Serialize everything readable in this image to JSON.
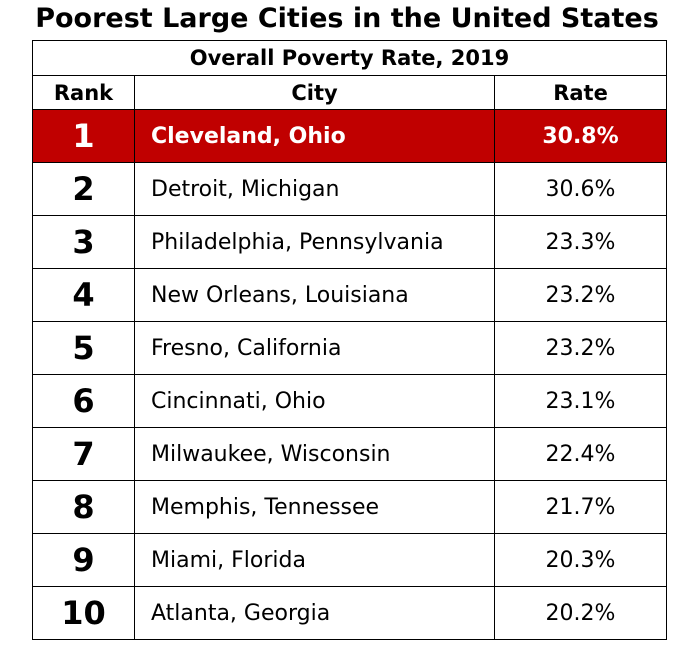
{
  "chart_data": {
    "type": "table",
    "title": "Poorest Large Cities in the United States",
    "subtitle": "Overall Poverty Rate, 2019",
    "columns": [
      "Rank",
      "City",
      "Rate"
    ],
    "highlight_color": "#c00000",
    "rows": [
      {
        "rank": "1",
        "city": "Cleveland, Ohio",
        "rate": "30.8%",
        "value": 30.8
      },
      {
        "rank": "2",
        "city": "Detroit, Michigan",
        "rate": "30.6%",
        "value": 30.6
      },
      {
        "rank": "3",
        "city": "Philadelphia, Pennsylvania",
        "rate": "23.3%",
        "value": 23.3
      },
      {
        "rank": "4",
        "city": "New Orleans, Louisiana",
        "rate": "23.2%",
        "value": 23.2
      },
      {
        "rank": "5",
        "city": "Fresno, California",
        "rate": "23.2%",
        "value": 23.2
      },
      {
        "rank": "6",
        "city": "Cincinnati, Ohio",
        "rate": "23.1%",
        "value": 23.1
      },
      {
        "rank": "7",
        "city": "Milwaukee, Wisconsin",
        "rate": "22.4%",
        "value": 22.4
      },
      {
        "rank": "8",
        "city": "Memphis, Tennessee",
        "rate": "21.7%",
        "value": 21.7
      },
      {
        "rank": "9",
        "city": "Miami, Florida",
        "rate": "20.3%",
        "value": 20.3
      },
      {
        "rank": "10",
        "city": "Atlanta, Georgia",
        "rate": "20.2%",
        "value": 20.2
      }
    ]
  }
}
